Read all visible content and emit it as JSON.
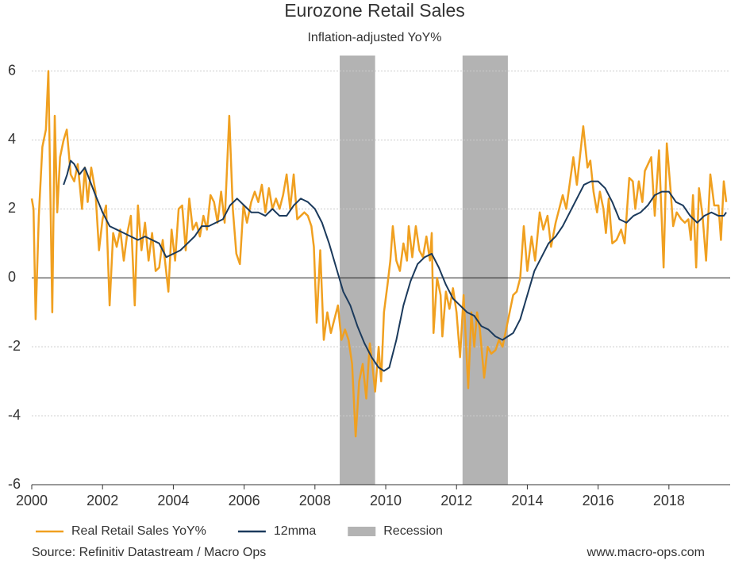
{
  "chart_data": {
    "type": "line",
    "title": "Eurozone Retail Sales",
    "subtitle": "Inflation-adjusted YoY%",
    "source": "Source: Refinitiv Datastream / Macro Ops",
    "website": "www.macro-ops.com",
    "xlim": [
      2000,
      2019.73
    ],
    "xticks": [
      2000,
      2002,
      2004,
      2006,
      2008,
      2010,
      2012,
      2014,
      2016,
      2018
    ],
    "ylim": [
      -6,
      6.45
    ],
    "yticks": [
      6,
      4,
      2,
      0,
      -2,
      -4,
      -6
    ],
    "grid": true,
    "legend": "bottom",
    "recessions": {
      "name": "Recession",
      "color": "#b3b3b3",
      "ranges": [
        [
          2008.7,
          2009.7
        ],
        [
          2012.17,
          2013.45
        ]
      ]
    },
    "series": [
      {
        "name": "Real Retail Sales YoY%",
        "color": "#f0a020",
        "x": [
          2000.0,
          2000.05,
          2000.11,
          2000.2,
          2000.3,
          2000.4,
          2000.47,
          2000.58,
          2000.65,
          2000.72,
          2000.8,
          2000.9,
          2000.99,
          2001.1,
          2001.2,
          2001.3,
          2001.42,
          2001.5,
          2001.58,
          2001.68,
          2001.8,
          2001.9,
          2002.0,
          2002.1,
          2002.2,
          2002.3,
          2002.4,
          2002.5,
          2002.6,
          2002.7,
          2002.8,
          2002.91,
          2003.0,
          2003.1,
          2003.2,
          2003.3,
          2003.4,
          2003.5,
          2003.6,
          2003.7,
          2003.86,
          2003.95,
          2004.05,
          2004.15,
          2004.25,
          2004.35,
          2004.45,
          2004.55,
          2004.65,
          2004.75,
          2004.85,
          2004.95,
          2005.05,
          2005.15,
          2005.25,
          2005.35,
          2005.45,
          2005.58,
          2005.68,
          2005.78,
          2005.88,
          2005.98,
          2006.08,
          2006.2,
          2006.3,
          2006.4,
          2006.5,
          2006.6,
          2006.7,
          2006.8,
          2006.9,
          2007.0,
          2007.1,
          2007.2,
          2007.3,
          2007.4,
          2007.5,
          2007.6,
          2007.7,
          2007.8,
          2007.9,
          2007.97,
          2008.05,
          2008.15,
          2008.25,
          2008.35,
          2008.45,
          2008.55,
          2008.65,
          2008.75,
          2008.85,
          2008.95,
          2009.05,
          2009.15,
          2009.25,
          2009.35,
          2009.45,
          2009.55,
          2009.62,
          2009.7,
          2009.8,
          2009.87,
          2009.95,
          2010.05,
          2010.13,
          2010.2,
          2010.3,
          2010.4,
          2010.5,
          2010.6,
          2010.65,
          2010.75,
          2010.85,
          2010.95,
          2011.05,
          2011.15,
          2011.25,
          2011.3,
          2011.35,
          2011.45,
          2011.55,
          2011.6,
          2011.7,
          2011.8,
          2011.9,
          2012.0,
          2012.1,
          2012.2,
          2012.33,
          2012.42,
          2012.5,
          2012.58,
          2012.66,
          2012.78,
          2012.88,
          2012.98,
          2013.1,
          2013.2,
          2013.3,
          2013.4,
          2013.5,
          2013.6,
          2013.7,
          2013.8,
          2013.9,
          2014.0,
          2014.12,
          2014.22,
          2014.35,
          2014.45,
          2014.57,
          2014.67,
          2014.8,
          2015.0,
          2015.1,
          2015.3,
          2015.4,
          2015.58,
          2015.7,
          2015.78,
          2015.87,
          2015.97,
          2016.05,
          2016.15,
          2016.22,
          2016.3,
          2016.35,
          2016.4,
          2016.52,
          2016.65,
          2016.75,
          2016.88,
          2016.98,
          2017.05,
          2017.15,
          2017.25,
          2017.32,
          2017.5,
          2017.6,
          2017.72,
          2017.85,
          2017.94,
          2018.05,
          2018.12,
          2018.22,
          2018.35,
          2018.45,
          2018.55,
          2018.62,
          2018.68,
          2018.77,
          2018.85,
          2018.95,
          2019.05,
          2019.17,
          2019.28,
          2019.4,
          2019.47,
          2019.55,
          2019.62
        ],
        "values": [
          2.3,
          2.0,
          -1.2,
          1.8,
          3.8,
          4.3,
          6.0,
          -1.0,
          4.7,
          1.9,
          3.5,
          4.0,
          4.3,
          3.0,
          2.8,
          3.3,
          2.0,
          3.2,
          2.2,
          3.2,
          2.5,
          0.8,
          1.7,
          2.1,
          -0.8,
          1.3,
          0.9,
          1.4,
          0.5,
          1.3,
          1.8,
          -0.8,
          2.1,
          0.8,
          1.6,
          0.5,
          1.3,
          0.2,
          0.3,
          1.1,
          -0.4,
          1.4,
          0.5,
          2.0,
          2.1,
          0.8,
          2.3,
          1.4,
          1.6,
          1.2,
          1.8,
          1.4,
          2.4,
          2.2,
          1.6,
          2.5,
          1.6,
          4.7,
          2.0,
          0.7,
          0.4,
          2.1,
          1.6,
          2.2,
          2.5,
          2.2,
          2.7,
          1.9,
          2.6,
          2.0,
          2.3,
          2.0,
          2.4,
          3.0,
          2.0,
          3.0,
          1.7,
          1.8,
          1.9,
          1.8,
          1.5,
          0.9,
          -1.3,
          0.8,
          -1.8,
          -1.0,
          -1.6,
          -1.2,
          -0.8,
          -1.8,
          -1.5,
          -1.8,
          -2.5,
          -4.6,
          -3.0,
          -2.5,
          -3.5,
          -1.9,
          -2.5,
          -3.3,
          -2.0,
          -3.0,
          -1.0,
          -0.2,
          0.5,
          1.5,
          0.5,
          0.2,
          1.0,
          0.5,
          1.5,
          0.6,
          1.5,
          0.8,
          0.6,
          1.2,
          0.5,
          1.3,
          -1.6,
          0.0,
          -0.5,
          -1.7,
          -0.4,
          -0.9,
          -0.3,
          -1.0,
          -2.3,
          -0.5,
          -3.2,
          -1.0,
          -2.0,
          -1.0,
          -1.5,
          -2.9,
          -2.0,
          -2.2,
          -2.1,
          -1.8,
          -2.0,
          -1.5,
          -1.0,
          -0.5,
          -0.4,
          0.0,
          1.5,
          0.2,
          1.2,
          0.5,
          1.9,
          1.4,
          1.8,
          0.9,
          1.6,
          2.4,
          2.0,
          3.5,
          2.7,
          4.4,
          3.2,
          3.4,
          2.5,
          1.9,
          2.5,
          2.0,
          1.3,
          2.3,
          1.6,
          1.0,
          1.1,
          1.4,
          1.0,
          2.9,
          2.8,
          2.0,
          2.8,
          2.2,
          3.1,
          3.5,
          1.8,
          3.7,
          0.3,
          3.9,
          2.5,
          1.5,
          1.9,
          1.7,
          1.6,
          1.7,
          1.1,
          2.4,
          0.3,
          2.6,
          1.8,
          0.5,
          3.0,
          2.1,
          2.1,
          1.1,
          2.8,
          2.2
        ]
      },
      {
        "name": "12mma",
        "color": "#1b3a5c",
        "x": [
          2000.9,
          2001.0,
          2001.1,
          2001.2,
          2001.35,
          2001.5,
          2001.65,
          2001.8,
          2002.0,
          2002.2,
          2002.4,
          2002.6,
          2002.8,
          2003.0,
          2003.2,
          2003.4,
          2003.6,
          2003.8,
          2004.0,
          2004.2,
          2004.4,
          2004.6,
          2004.8,
          2005.0,
          2005.2,
          2005.4,
          2005.6,
          2005.8,
          2006.0,
          2006.2,
          2006.4,
          2006.6,
          2006.8,
          2007.0,
          2007.2,
          2007.4,
          2007.6,
          2007.8,
          2008.0,
          2008.2,
          2008.4,
          2008.6,
          2008.8,
          2009.0,
          2009.2,
          2009.4,
          2009.6,
          2009.8,
          2009.95,
          2010.1,
          2010.3,
          2010.5,
          2010.7,
          2010.9,
          2011.1,
          2011.3,
          2011.5,
          2011.7,
          2011.9,
          2012.1,
          2012.3,
          2012.5,
          2012.7,
          2012.9,
          2013.1,
          2013.3,
          2013.45,
          2013.6,
          2013.8,
          2014.0,
          2014.2,
          2014.4,
          2014.6,
          2014.8,
          2015.0,
          2015.2,
          2015.4,
          2015.6,
          2015.8,
          2016.0,
          2016.2,
          2016.4,
          2016.6,
          2016.8,
          2017.0,
          2017.2,
          2017.4,
          2017.6,
          2017.8,
          2018.0,
          2018.2,
          2018.4,
          2018.6,
          2018.8,
          2019.0,
          2019.2,
          2019.4,
          2019.55,
          2019.62
        ],
        "values": [
          2.7,
          3.0,
          3.4,
          3.3,
          3.0,
          3.2,
          2.8,
          2.4,
          1.9,
          1.5,
          1.4,
          1.3,
          1.2,
          1.1,
          1.2,
          1.1,
          1.0,
          0.6,
          0.7,
          0.8,
          1.0,
          1.2,
          1.5,
          1.5,
          1.6,
          1.7,
          2.1,
          2.3,
          2.1,
          1.9,
          1.9,
          1.8,
          2.0,
          1.8,
          1.8,
          2.1,
          2.3,
          2.2,
          2.0,
          1.6,
          1.0,
          0.3,
          -0.4,
          -0.8,
          -1.4,
          -1.9,
          -2.3,
          -2.6,
          -2.7,
          -2.6,
          -1.8,
          -0.8,
          -0.1,
          0.4,
          0.6,
          0.7,
          0.3,
          -0.2,
          -0.6,
          -0.8,
          -1.0,
          -1.1,
          -1.4,
          -1.5,
          -1.7,
          -1.8,
          -1.7,
          -1.6,
          -1.2,
          -0.5,
          0.2,
          0.6,
          1.0,
          1.2,
          1.5,
          1.9,
          2.3,
          2.7,
          2.8,
          2.8,
          2.6,
          2.2,
          1.7,
          1.6,
          1.8,
          1.9,
          2.1,
          2.4,
          2.5,
          2.5,
          2.2,
          2.1,
          1.8,
          1.6,
          1.8,
          1.9,
          1.8,
          1.8,
          1.9
        ]
      }
    ]
  }
}
